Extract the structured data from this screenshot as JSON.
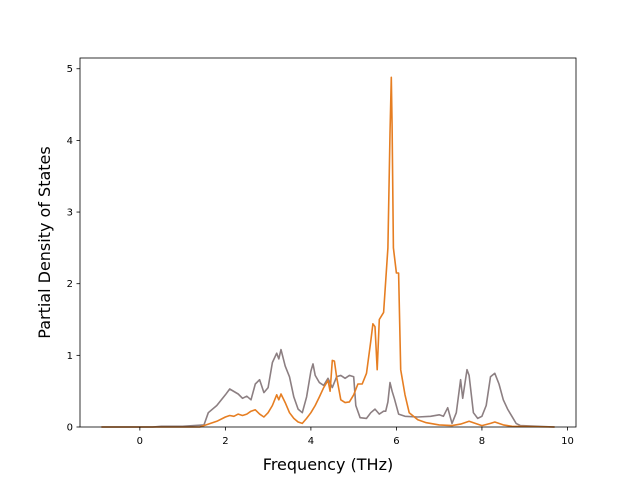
{
  "chart_data": {
    "type": "line",
    "title": "",
    "xlabel": "Frequency (THz)",
    "ylabel": "Partial Density of States",
    "xlim": [
      -1.4,
      10.2
    ],
    "ylim": [
      0,
      5.15
    ],
    "xticks": [
      0,
      2,
      4,
      6,
      8,
      10
    ],
    "yticks": [
      0,
      1,
      2,
      3,
      4,
      5
    ],
    "grid": false,
    "legend": "none",
    "series": [
      {
        "color": "#8c7f82",
        "points": [
          [
            -0.9,
            0
          ],
          [
            0.3,
            0
          ],
          [
            0.5,
            0.01
          ],
          [
            1.0,
            0.01
          ],
          [
            1.5,
            0.03
          ],
          [
            1.6,
            0.2
          ],
          [
            1.8,
            0.3
          ],
          [
            2.0,
            0.45
          ],
          [
            2.1,
            0.53
          ],
          [
            2.3,
            0.46
          ],
          [
            2.4,
            0.4
          ],
          [
            2.5,
            0.43
          ],
          [
            2.6,
            0.38
          ],
          [
            2.7,
            0.6
          ],
          [
            2.8,
            0.66
          ],
          [
            2.9,
            0.48
          ],
          [
            3.0,
            0.55
          ],
          [
            3.1,
            0.9
          ],
          [
            3.2,
            1.03
          ],
          [
            3.25,
            0.95
          ],
          [
            3.3,
            1.08
          ],
          [
            3.4,
            0.85
          ],
          [
            3.5,
            0.7
          ],
          [
            3.6,
            0.42
          ],
          [
            3.7,
            0.25
          ],
          [
            3.8,
            0.2
          ],
          [
            3.9,
            0.42
          ],
          [
            4.0,
            0.78
          ],
          [
            4.05,
            0.88
          ],
          [
            4.1,
            0.72
          ],
          [
            4.2,
            0.62
          ],
          [
            4.3,
            0.58
          ],
          [
            4.4,
            0.68
          ],
          [
            4.5,
            0.55
          ],
          [
            4.6,
            0.7
          ],
          [
            4.7,
            0.72
          ],
          [
            4.8,
            0.68
          ],
          [
            4.9,
            0.72
          ],
          [
            5.0,
            0.7
          ],
          [
            5.05,
            0.3
          ],
          [
            5.15,
            0.13
          ],
          [
            5.3,
            0.12
          ],
          [
            5.4,
            0.2
          ],
          [
            5.5,
            0.25
          ],
          [
            5.6,
            0.18
          ],
          [
            5.7,
            0.22
          ],
          [
            5.75,
            0.22
          ],
          [
            5.8,
            0.35
          ],
          [
            5.85,
            0.62
          ],
          [
            5.9,
            0.5
          ],
          [
            5.95,
            0.4
          ],
          [
            6.05,
            0.18
          ],
          [
            6.2,
            0.15
          ],
          [
            6.5,
            0.14
          ],
          [
            6.8,
            0.15
          ],
          [
            7.0,
            0.17
          ],
          [
            7.1,
            0.15
          ],
          [
            7.2,
            0.27
          ],
          [
            7.3,
            0.05
          ],
          [
            7.4,
            0.2
          ],
          [
            7.5,
            0.66
          ],
          [
            7.55,
            0.4
          ],
          [
            7.65,
            0.8
          ],
          [
            7.7,
            0.72
          ],
          [
            7.8,
            0.2
          ],
          [
            7.9,
            0.12
          ],
          [
            8.0,
            0.15
          ],
          [
            8.1,
            0.3
          ],
          [
            8.2,
            0.7
          ],
          [
            8.3,
            0.75
          ],
          [
            8.4,
            0.6
          ],
          [
            8.5,
            0.38
          ],
          [
            8.6,
            0.25
          ],
          [
            8.7,
            0.15
          ],
          [
            8.8,
            0.05
          ],
          [
            8.9,
            0.02
          ],
          [
            9.7,
            0
          ]
        ]
      },
      {
        "color": "#e67e22",
        "points": [
          [
            -0.9,
            0
          ],
          [
            1.4,
            0
          ],
          [
            1.6,
            0.04
          ],
          [
            1.8,
            0.08
          ],
          [
            2.0,
            0.14
          ],
          [
            2.1,
            0.16
          ],
          [
            2.2,
            0.15
          ],
          [
            2.3,
            0.18
          ],
          [
            2.4,
            0.16
          ],
          [
            2.5,
            0.18
          ],
          [
            2.6,
            0.22
          ],
          [
            2.7,
            0.24
          ],
          [
            2.8,
            0.18
          ],
          [
            2.9,
            0.14
          ],
          [
            3.0,
            0.2
          ],
          [
            3.1,
            0.3
          ],
          [
            3.2,
            0.45
          ],
          [
            3.25,
            0.38
          ],
          [
            3.3,
            0.46
          ],
          [
            3.4,
            0.34
          ],
          [
            3.5,
            0.2
          ],
          [
            3.6,
            0.12
          ],
          [
            3.7,
            0.07
          ],
          [
            3.8,
            0.05
          ],
          [
            3.9,
            0.12
          ],
          [
            4.0,
            0.2
          ],
          [
            4.1,
            0.3
          ],
          [
            4.2,
            0.42
          ],
          [
            4.3,
            0.55
          ],
          [
            4.4,
            0.65
          ],
          [
            4.45,
            0.5
          ],
          [
            4.5,
            0.93
          ],
          [
            4.55,
            0.92
          ],
          [
            4.6,
            0.7
          ],
          [
            4.7,
            0.38
          ],
          [
            4.8,
            0.34
          ],
          [
            4.9,
            0.35
          ],
          [
            5.0,
            0.45
          ],
          [
            5.1,
            0.6
          ],
          [
            5.2,
            0.6
          ],
          [
            5.3,
            0.75
          ],
          [
            5.4,
            1.2
          ],
          [
            5.45,
            1.44
          ],
          [
            5.5,
            1.4
          ],
          [
            5.55,
            0.8
          ],
          [
            5.6,
            1.5
          ],
          [
            5.7,
            1.6
          ],
          [
            5.8,
            2.5
          ],
          [
            5.85,
            4.1
          ],
          [
            5.88,
            4.88
          ],
          [
            5.9,
            4.2
          ],
          [
            5.93,
            2.5
          ],
          [
            6.0,
            2.15
          ],
          [
            6.05,
            2.15
          ],
          [
            6.1,
            0.8
          ],
          [
            6.2,
            0.45
          ],
          [
            6.3,
            0.2
          ],
          [
            6.5,
            0.1
          ],
          [
            6.7,
            0.06
          ],
          [
            7.0,
            0.03
          ],
          [
            7.3,
            0.02
          ],
          [
            7.5,
            0.04
          ],
          [
            7.7,
            0.08
          ],
          [
            8.0,
            0.02
          ],
          [
            8.2,
            0.05
          ],
          [
            8.3,
            0.07
          ],
          [
            8.5,
            0.03
          ],
          [
            8.7,
            0.01
          ],
          [
            9.7,
            0
          ]
        ]
      }
    ]
  }
}
